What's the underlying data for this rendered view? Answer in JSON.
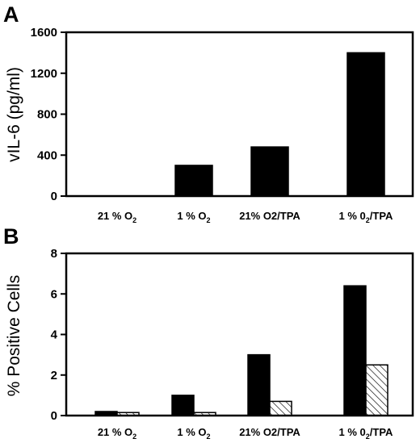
{
  "chart_data": [
    {
      "type": "bar",
      "panel_label": "A",
      "categories": [
        "21 % O2",
        "1 % O2",
        "21% O2/TPA",
        "1 % 02/TPA"
      ],
      "category_labels": [
        {
          "main": "21 % O",
          "sub": "2",
          "tail": ""
        },
        {
          "main": "1 % O",
          "sub": "2",
          "tail": ""
        },
        {
          "main": "21% O2/TPA",
          "sub": "",
          "tail": ""
        },
        {
          "main": "1 % 0",
          "sub": "2",
          "tail": "/TPA"
        }
      ],
      "series": [
        {
          "values": [
            0,
            300,
            480,
            1400
          ],
          "fill": "solid"
        }
      ],
      "ylabel": "vIL-6 (pg/ml)",
      "xlabel": "",
      "ylim": [
        0,
        1600
      ],
      "yticks": [
        0,
        400,
        800,
        1200,
        1600
      ],
      "grid": false
    },
    {
      "type": "bar",
      "panel_label": "B",
      "categories": [
        "21 % O2",
        "1 % O2",
        "21% O2/TPA",
        "1 % 02/TPA"
      ],
      "category_labels": [
        {
          "main": "21 % O",
          "sub": "2",
          "tail": ""
        },
        {
          "main": "1 % O",
          "sub": "2",
          "tail": ""
        },
        {
          "main": "21% O2/TPA",
          "sub": "",
          "tail": ""
        },
        {
          "main": "1 % 0",
          "sub": "2",
          "tail": "/TPA"
        }
      ],
      "series": [
        {
          "values": [
            0.2,
            1.0,
            3.0,
            6.4
          ],
          "fill": "solid"
        },
        {
          "values": [
            0.15,
            0.15,
            0.7,
            2.5
          ],
          "fill": "hatched"
        }
      ],
      "ylabel": "% Positive Cells",
      "xlabel": "",
      "ylim": [
        0,
        8
      ],
      "yticks": [
        0,
        2,
        4,
        6,
        8
      ],
      "grid": false
    }
  ]
}
